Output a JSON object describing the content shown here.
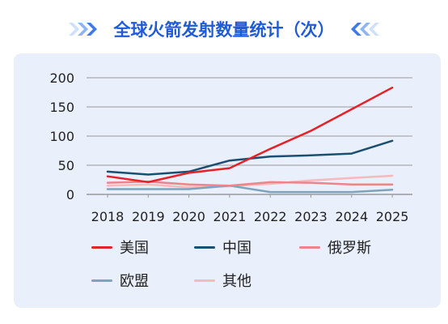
{
  "title": "全球火箭发射数量统计（次）",
  "colors": {
    "title": "#1f5bd6",
    "card_bg": "#e9effb",
    "grid": "#9a9a9a",
    "axis_text": "#222222"
  },
  "chart_data": {
    "type": "line",
    "title": "全球火箭发射数量统计（次）",
    "xlabel": "",
    "ylabel": "",
    "x": [
      "2018",
      "2019",
      "2020",
      "2021",
      "2022",
      "2023",
      "2024",
      "2025"
    ],
    "ylim": [
      0,
      200
    ],
    "yticks": [
      0,
      50,
      100,
      150,
      200
    ],
    "grid": true,
    "legend_position": "bottom",
    "series": [
      {
        "name": "美国",
        "color": "#e5222a",
        "values": [
          31,
          21,
          37,
          45,
          78,
          109,
          146,
          183
        ]
      },
      {
        "name": "中国",
        "color": "#1b4f72",
        "values": [
          39,
          34,
          39,
          58,
          65,
          67,
          70,
          92
        ]
      },
      {
        "name": "俄罗斯",
        "color": "#f0828a",
        "values": [
          20,
          22,
          17,
          15,
          21,
          20,
          17,
          17
        ]
      },
      {
        "name": "欧盟",
        "color": "#7fa3bd",
        "values": [
          9,
          9,
          9,
          15,
          4,
          4,
          4,
          8
        ]
      },
      {
        "name": "其他",
        "color": "#f6b9bc",
        "values": [
          15,
          17,
          12,
          14,
          18,
          24,
          28,
          32
        ]
      }
    ]
  }
}
